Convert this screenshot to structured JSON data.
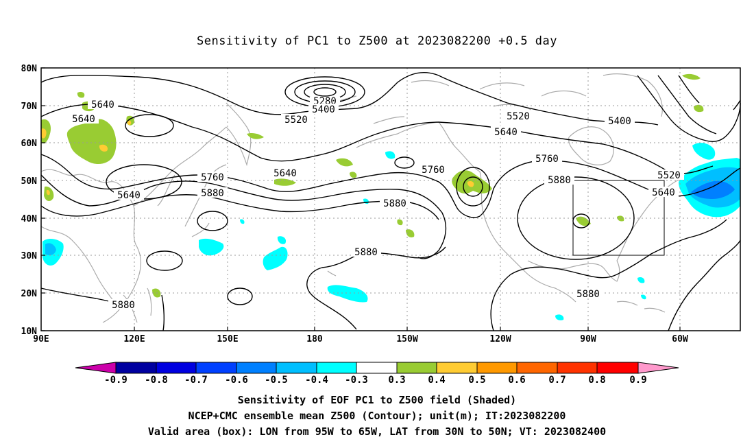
{
  "title": "Sensitivity of PC1 to Z500 at 2023082200 +0.5 day",
  "lat_labels": [
    "80N",
    "70N",
    "60N",
    "50N",
    "40N",
    "30N",
    "20N",
    "10N"
  ],
  "lon_labels": [
    "90E",
    "120E",
    "150E",
    "180",
    "150W",
    "120W",
    "90W",
    "60W"
  ],
  "contour_labels": [
    {
      "text": "5640",
      "region": "north-china"
    },
    {
      "text": "5640",
      "region": "mongolia"
    },
    {
      "text": "5280",
      "region": "arctic-low"
    },
    {
      "text": "5400",
      "region": "arctic-low"
    },
    {
      "text": "5520",
      "region": "bering"
    },
    {
      "text": "5520",
      "region": "canada"
    },
    {
      "text": "5400",
      "region": "labrador"
    },
    {
      "text": "5640",
      "region": "canada"
    },
    {
      "text": "5640",
      "region": "north-pacific"
    },
    {
      "text": "5760",
      "region": "gulf-of-alaska"
    },
    {
      "text": "5760",
      "region": "canada"
    },
    {
      "text": "5760",
      "region": "japan"
    },
    {
      "text": "5880",
      "region": "japan"
    },
    {
      "text": "5880",
      "region": "north-pacific"
    },
    {
      "text": "5880",
      "region": "central-pacific"
    },
    {
      "text": "5880",
      "region": "us-ridge"
    },
    {
      "text": "5880",
      "region": "gulf-of-mexico"
    },
    {
      "text": "5880",
      "region": "south-china-sea"
    },
    {
      "text": "5640",
      "region": "north-china-west"
    },
    {
      "text": "5520",
      "region": "atlantic-canada"
    },
    {
      "text": "5640",
      "region": "atlantic-canada"
    }
  ],
  "colorbar": {
    "labels": [
      "-0.9",
      "-0.8",
      "-0.7",
      "-0.6",
      "-0.5",
      "-0.4",
      "-0.3",
      "0.3",
      "0.4",
      "0.5",
      "0.6",
      "0.7",
      "0.8",
      "0.9"
    ],
    "colors": [
      "#0000a0",
      "#0000e0",
      "#0040ff",
      "#0080ff",
      "#00bfff",
      "#00ffff",
      "#ffffff",
      "#99cc33",
      "#ffcc33",
      "#ff9900",
      "#ff6600",
      "#ff3300",
      "#ff0000"
    ],
    "low_arrow_color": "#cc00aa",
    "high_arrow_color": "#ff99cc"
  },
  "caption": {
    "line1": "Sensitivity of EOF PC1 to Z500 field (Shaded)",
    "line2": "NCEP+CMC ensemble mean Z500 (Contour); unit(m); IT:2023082200",
    "line3": "Valid area (box): LON from 95W to 65W, LAT from 30N to 50N; VT: 2023082400"
  },
  "colors": {
    "coastline": "#aaaaaa",
    "contour": "#000000",
    "green_shade": "#99cc33",
    "cyan_shade": "#00ffff",
    "lightblue_shade": "#00bfff",
    "blue_shade": "#0080ff",
    "orange_shade": "#ffcc33"
  }
}
